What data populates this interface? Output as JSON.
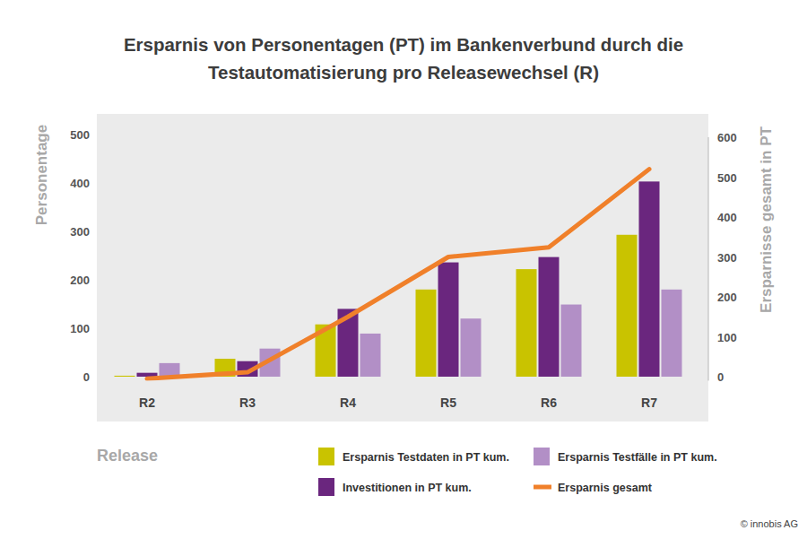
{
  "chart_data": {
    "type": "bar",
    "title": [
      "Ersparnis von Personentagen (PT) im Bankenverbund durch die",
      "Testautomatisierung pro Releasewechsel (R)"
    ],
    "x_label": "Release",
    "y_label": "Personentage",
    "y2_label": "Ersparnisse gesamt in PT",
    "annotation": "© innobis AG",
    "categories": [
      "R2",
      "R3",
      "R4",
      "R5",
      "R6",
      "R7"
    ],
    "series": [
      {
        "name": "Ersparnis Testdaten in PT kum.",
        "type": "bar",
        "color": "#c9c300",
        "values": [
          2,
          37,
          108,
          180,
          222,
          293
        ]
      },
      {
        "name": "Investitionen in PT kum.",
        "type": "bar",
        "color": "#6a267e",
        "values": [
          8,
          32,
          140,
          236,
          247,
          403
        ]
      },
      {
        "name": "Ersparnis Testfälle in PT kum.",
        "type": "bar",
        "color": "#b28fc6",
        "values": [
          28,
          58,
          89,
          120,
          149,
          180
        ]
      },
      {
        "name": "Ersparnis gesamt",
        "type": "line",
        "axis": "y2",
        "color": "#f0802a",
        "values": [
          -5,
          11,
          150,
          300,
          324,
          520
        ]
      }
    ],
    "ylim": [
      0,
      500
    ],
    "yticks": [
      0,
      100,
      200,
      300,
      400,
      500
    ],
    "y2lim": [
      -10,
      600
    ],
    "y2ticks": [
      0,
      100,
      200,
      300,
      400,
      500,
      600
    ],
    "grid": false,
    "legend": "bottom"
  }
}
